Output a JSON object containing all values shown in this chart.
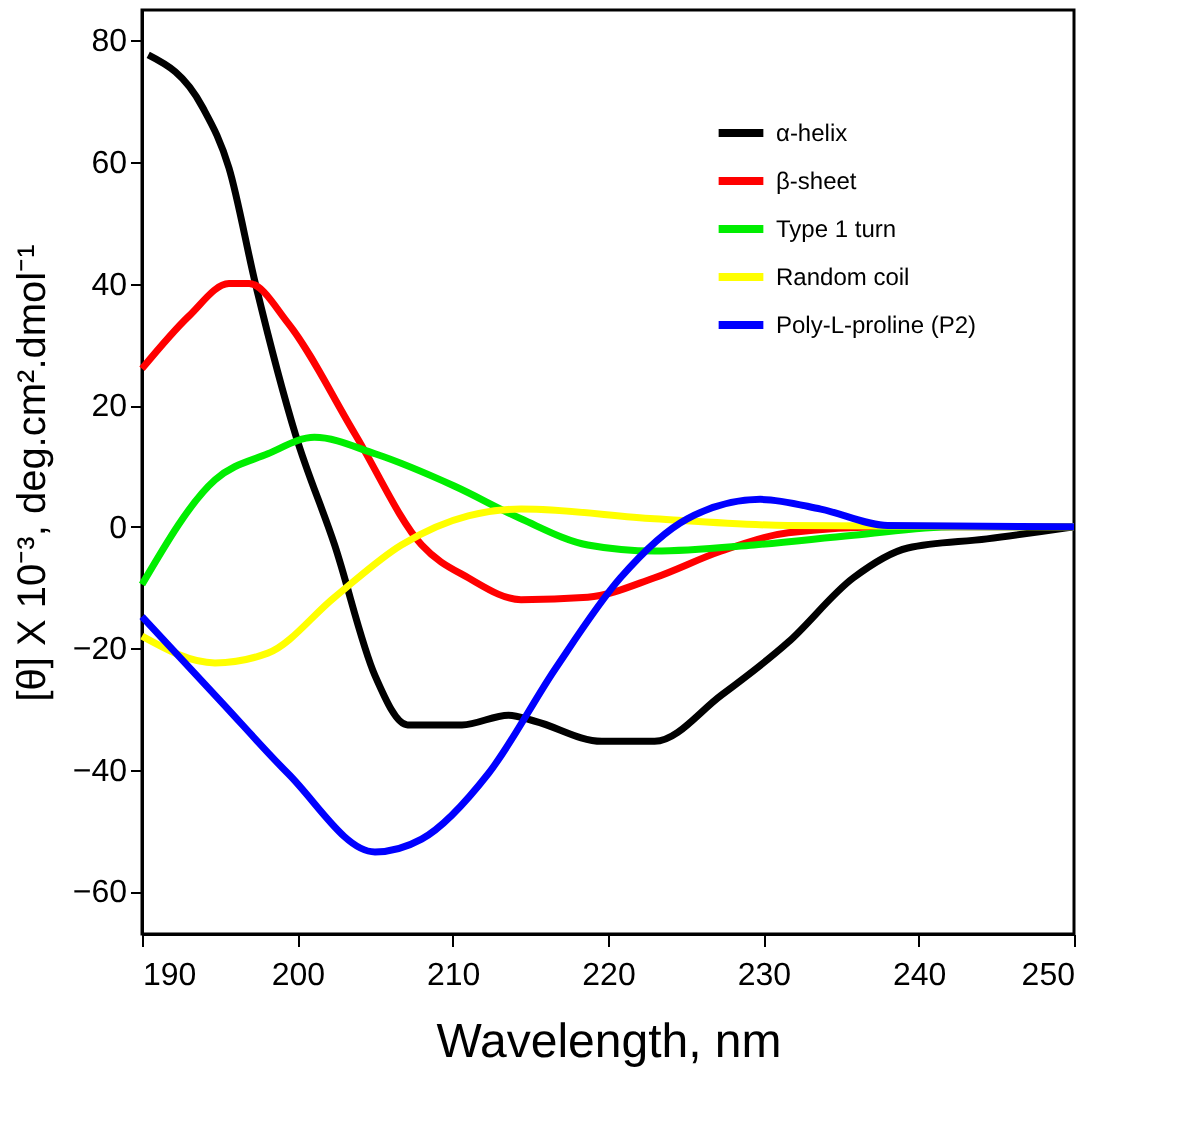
{
  "chart_data": {
    "type": "line",
    "xlabel": "Wavelength, nm",
    "ylabel": "[θ] X 10⁻³, deg.cm².dmol⁻¹",
    "xlim": [
      190,
      250
    ],
    "xticks": [
      190,
      200,
      210,
      220,
      230,
      240,
      250
    ],
    "ylim": [
      -67,
      85
    ],
    "yticks": [
      -60,
      -40,
      -20,
      0,
      20,
      40,
      60,
      80
    ],
    "grid": false,
    "legend": "top right",
    "line_style": "solid",
    "marker": "none",
    "series": [
      {
        "name": "α-helix",
        "color": "#000000",
        "x": [
          190.4,
          193.9,
          195.6,
          197.3,
          199.9,
          202.4,
          205,
          207.1,
          210.6,
          213.6,
          215.3,
          219.6,
          223,
          227.3,
          231.6,
          235.8,
          239.3,
          244.4,
          250
        ],
        "values": [
          77.6,
          69,
          59,
          40,
          15,
          -3,
          -24.5,
          -32.6,
          -32.6,
          -31,
          -32,
          -35.3,
          -35.3,
          -27.7,
          -19,
          -8.4,
          -3.5,
          -2,
          0
        ]
      },
      {
        "name": "β-sheet",
        "color": "#ff0000",
        "x": [
          190,
          193,
          195.6,
          196.9,
          199.4,
          203.7,
          208,
          211,
          214.4,
          218.7,
          223,
          227.3,
          231.6,
          238,
          250
        ],
        "values": [
          26,
          34.6,
          40,
          40,
          33.5,
          15.3,
          -3,
          -8.4,
          -12,
          -11.6,
          -8.4,
          -4,
          -1,
          0,
          0
        ]
      },
      {
        "name": "Type 1 turn",
        "color": "#00ee00",
        "x": [
          190,
          194.7,
          198.1,
          201.1,
          205,
          210.1,
          214.4,
          218.7,
          223,
          229.4,
          235.8,
          242.3,
          250
        ],
        "values": [
          -9.5,
          7.7,
          12,
          14.7,
          12,
          6.7,
          1.3,
          -3,
          -4,
          -3,
          -1.4,
          0,
          0
        ]
      },
      {
        "name": "Random coil",
        "color": "#ffff00",
        "x": [
          190,
          194.7,
          198.1,
          202.4,
          206.7,
          211,
          214.4,
          223,
          231.6,
          250
        ],
        "values": [
          -18,
          -22.4,
          -20.8,
          -11.6,
          -3,
          1.8,
          2.9,
          1.3,
          0.2,
          0
        ]
      },
      {
        "name": "Poly-L-proline (P2)",
        "color": "#0000ff",
        "x": [
          190,
          195.1,
          199.4,
          205,
          208,
          212.3,
          216.6,
          220.8,
          225.1,
          229.8,
          233.7,
          238,
          250
        ],
        "values": [
          -14.8,
          -28.8,
          -40.6,
          -53.5,
          -51.4,
          -40.6,
          -23.4,
          -8.4,
          1.3,
          4.5,
          2.9,
          0.2,
          0
        ]
      }
    ]
  }
}
